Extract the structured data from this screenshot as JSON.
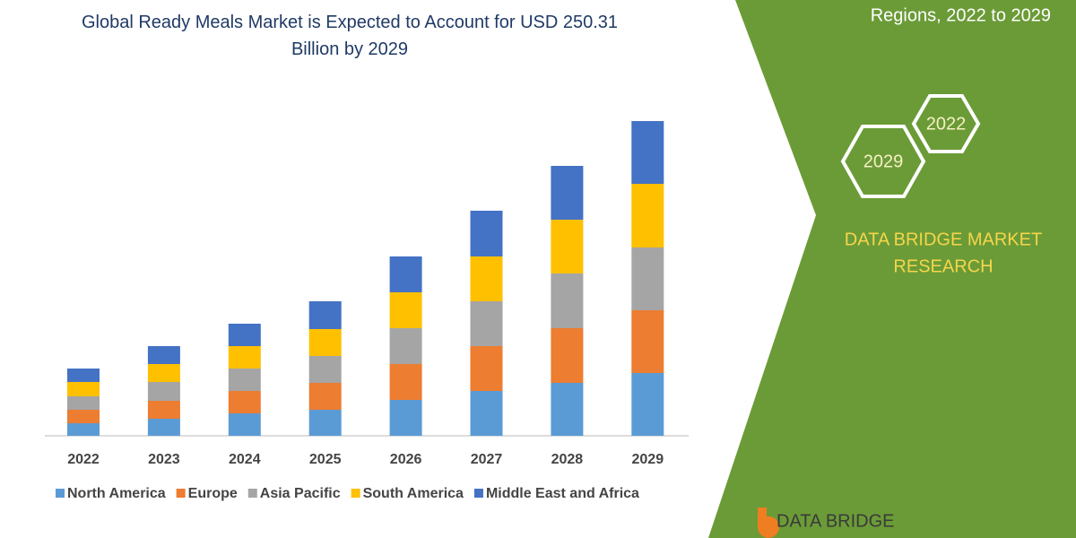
{
  "chart_data": {
    "type": "bar",
    "stacked": true,
    "title": "Global Ready Meals Market is Expected to Account for USD 250.31 Billion by 2029",
    "categories": [
      "2022",
      "2023",
      "2024",
      "2025",
      "2026",
      "2027",
      "2028",
      "2029"
    ],
    "series": [
      {
        "name": "North America",
        "color": "#5b9bd5",
        "values": [
          14,
          19,
          25,
          29,
          40,
          50,
          59,
          70
        ]
      },
      {
        "name": "Europe",
        "color": "#ed7d31",
        "values": [
          15,
          20,
          25,
          30,
          40,
          50,
          61,
          70
        ]
      },
      {
        "name": "Asia Pacific",
        "color": "#a5a5a5",
        "values": [
          15,
          21,
          25,
          30,
          40,
          50,
          61,
          70
        ]
      },
      {
        "name": "South America",
        "color": "#ffc000",
        "values": [
          16,
          20,
          25,
          30,
          40,
          50,
          60,
          71
        ]
      },
      {
        "name": "Middle East and Africa",
        "color": "#4472c4",
        "values": [
          15,
          20,
          25,
          31,
          40,
          51,
          60,
          70
        ]
      }
    ],
    "legend": "bottom"
  },
  "panel": {
    "subtitle": "Regions, 2022 to 2029",
    "hexagons": [
      "2022",
      "2029"
    ],
    "brand": [
      "DATA BRIDGE MARKET",
      "RESEARCH"
    ],
    "logo": "DATA BRIDGE"
  }
}
